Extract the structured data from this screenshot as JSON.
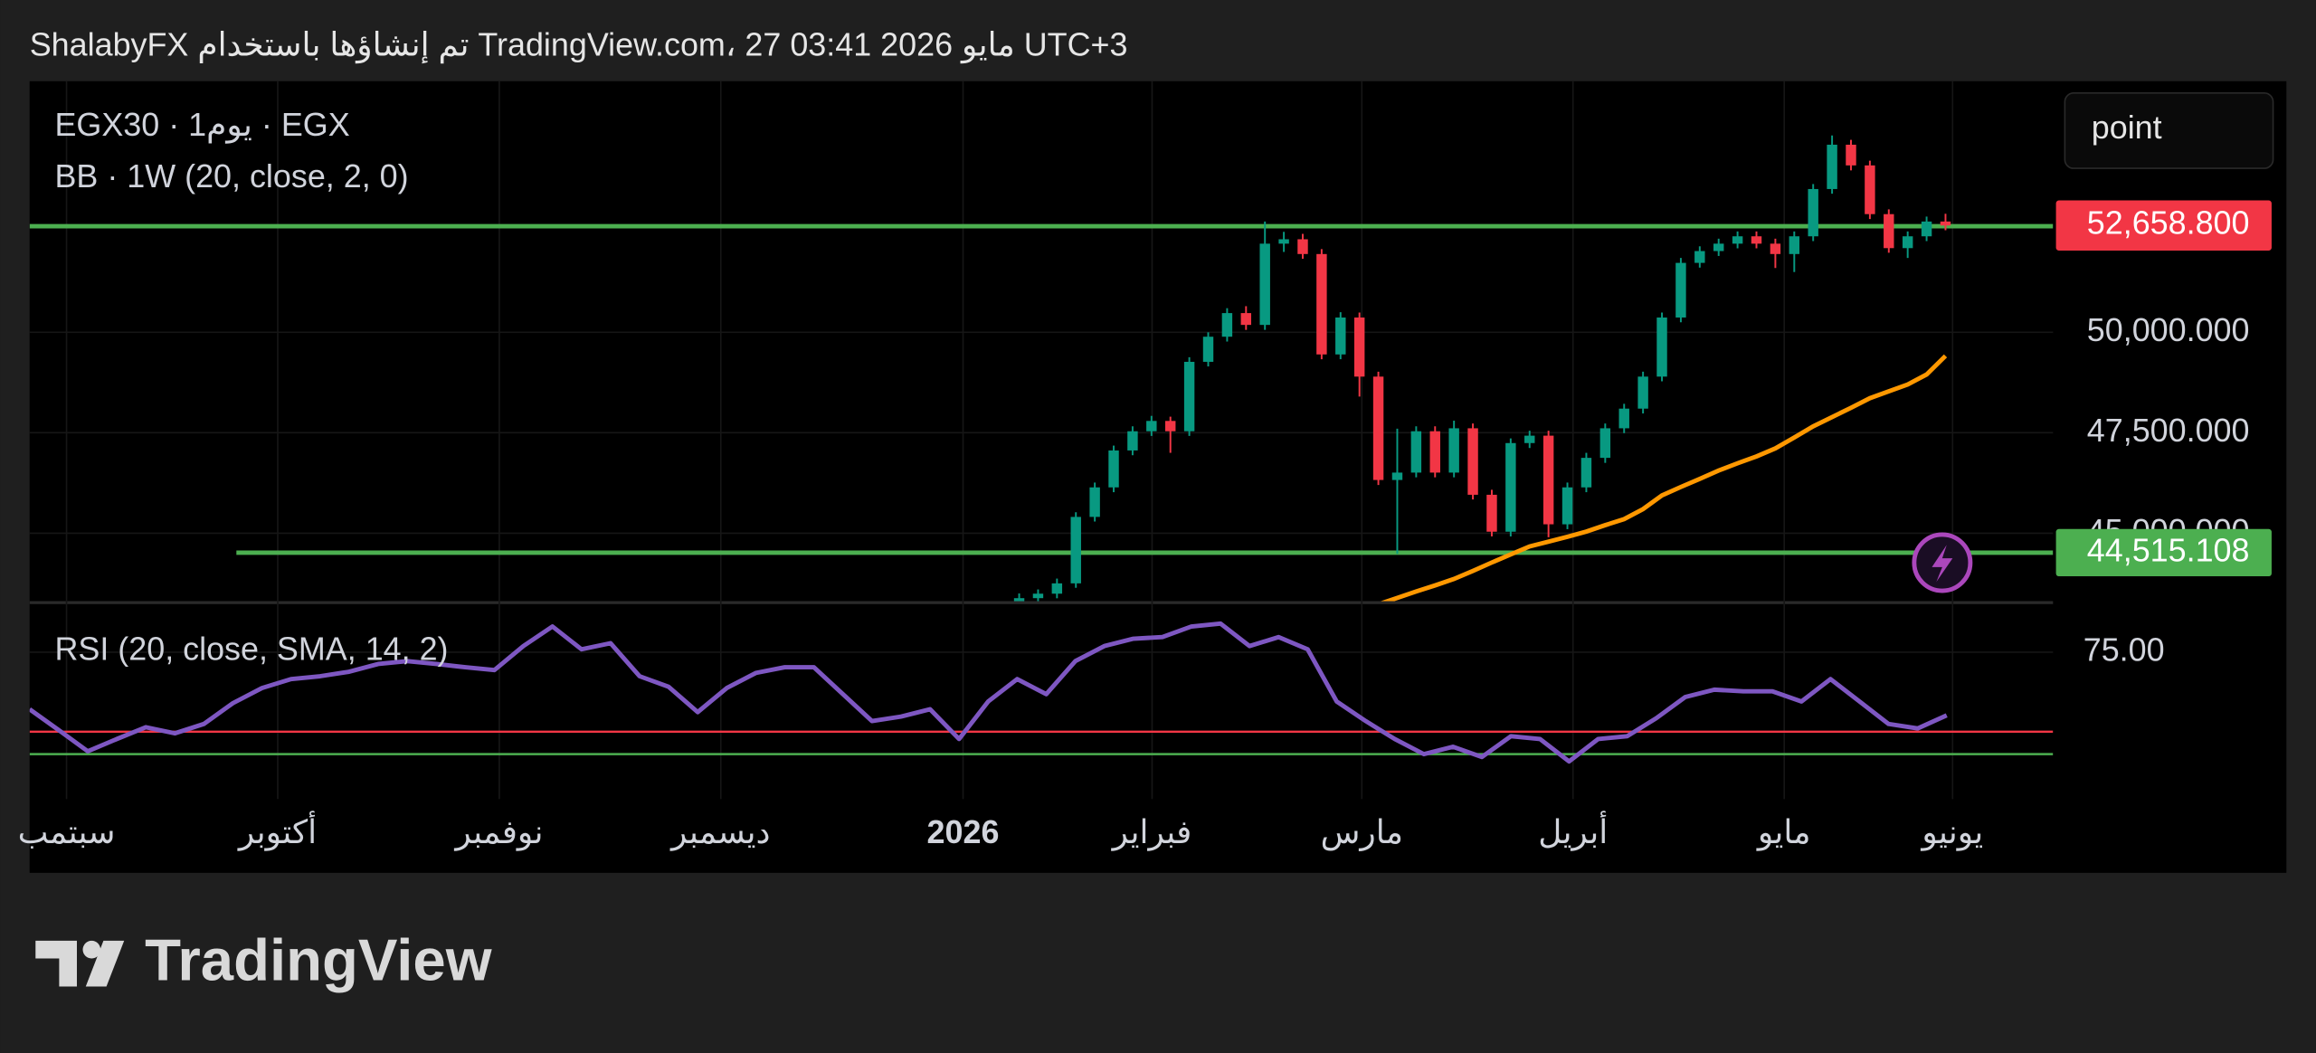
{
  "header": "ShalabyFX تم إنشاؤها باستخدام TradingView.com، 27 مايو 2026 03:41 UTC+3",
  "footer": {
    "logo": "TradingView"
  },
  "chart_data": {
    "type": "candlestick",
    "symbol_label": "EGX30 · 1يوم · EGX",
    "indicator_label": "BB · 1W (20, close, 2, 0)",
    "interval_button": "point",
    "colors": {
      "up": "#089981",
      "down": "#f23645"
    },
    "open": [
      43250,
      43383,
      43494,
      43751,
      45405,
      46140,
      47059,
      47537,
      47794,
      47537,
      49265,
      49890,
      50478,
      50184,
      52206,
      52316,
      51948,
      49449,
      50368,
      48897,
      46324,
      46508,
      47537,
      46508,
      47611,
      45956,
      45037,
      47243,
      47427,
      45221,
      46140,
      46875,
      47611,
      48100,
      48897,
      50368,
      51728,
      52022,
      52206,
      52389,
      52206,
      51948,
      52389,
      53566,
      54669,
      54154,
      52941,
      52095,
      52389,
      52757
    ],
    "high": [
      43500,
      43600,
      43870,
      45520,
      46260,
      47180,
      47660,
      47920,
      47900,
      49380,
      50000,
      50600,
      50650,
      52757,
      52500,
      52450,
      52070,
      50500,
      50490,
      49020,
      47600,
      47660,
      47660,
      47800,
      47730,
      46080,
      47360,
      47550,
      47550,
      46260,
      47000,
      47730,
      48220,
      49020,
      50490,
      51850,
      52140,
      52330,
      52510,
      52510,
      52330,
      52510,
      53690,
      54900,
      54790,
      54270,
      53060,
      52510,
      52880,
      52950
    ],
    "low": [
      43130,
      43260,
      43380,
      43640,
      45290,
      46020,
      46940,
      47420,
      47000,
      47420,
      49150,
      49770,
      50060,
      50060,
      52000,
      51830,
      49330,
      49330,
      48400,
      46200,
      44486,
      46390,
      46390,
      46390,
      45840,
      44920,
      44920,
      47120,
      44900,
      45100,
      46020,
      46750,
      47490,
      47980,
      48780,
      50250,
      51610,
      51900,
      52090,
      52090,
      51600,
      51500,
      52270,
      53450,
      54030,
      52820,
      51980,
      51850,
      52270,
      52540
    ],
    "close": [
      43383,
      43494,
      43751,
      45405,
      46140,
      47059,
      47537,
      47794,
      47537,
      49265,
      49890,
      50478,
      50184,
      52206,
      52316,
      51948,
      49449,
      50368,
      48897,
      46324,
      46508,
      47537,
      46508,
      47611,
      45956,
      45037,
      47243,
      47427,
      45221,
      46140,
      46875,
      47611,
      48100,
      48897,
      50368,
      51728,
      52022,
      52206,
      52389,
      52206,
      51948,
      52389,
      53566,
      54669,
      54154,
      52941,
      52095,
      52389,
      52757,
      52658.8
    ],
    "bb_basis": {
      "color": "#ff9800",
      "values": [
        null,
        null,
        null,
        null,
        null,
        null,
        null,
        null,
        null,
        null,
        null,
        null,
        null,
        null,
        null,
        null,
        null,
        null,
        null,
        43230,
        43390,
        43550,
        43700,
        43861,
        44060,
        44270,
        44470,
        44670,
        44790,
        44910,
        45040,
        45200,
        45350,
        45600,
        45940,
        46150,
        46350,
        46560,
        46740,
        46910,
        47110,
        47380,
        47660,
        47890,
        48120,
        48360,
        48530,
        48700,
        48950,
        49412
      ]
    },
    "ylim": [
      43310,
      56249
    ],
    "yticks": [
      {
        "value": 50000,
        "label": "50,000.000"
      },
      {
        "value": 47500,
        "label": "47,500.000"
      },
      {
        "value": 45000,
        "label": "45,000.000"
      }
    ],
    "last_price": {
      "value": 52658.8,
      "label": "52,658.800",
      "color": "#f23645"
    },
    "hlines": [
      {
        "value": 52640,
        "color": "#4caf50"
      },
      {
        "value": 44515.108,
        "label": "44,515.108",
        "color": "#4caf50"
      }
    ],
    "xtick_labels": [
      "سبتمب",
      "أكتوبر",
      "نوفمبر",
      "ديسمبر",
      "2026",
      "فبراير",
      "مارس",
      "أبريل",
      "مايو",
      "يونيو"
    ],
    "rsi": {
      "title": "RSI (20, close, SMA, 14, 2)",
      "color": "#7e57c2",
      "values": [
        61.0,
        55.9,
        50.7,
        53.7,
        56.6,
        55.1,
        57.4,
        62.5,
        66.2,
        68.4,
        69.1,
        70.2,
        72.1,
        72.8,
        72.1,
        71.3,
        70.6,
        76.5,
        81.3,
        75.7,
        77.2,
        69.1,
        66.5,
        60.3,
        66.2,
        69.9,
        71.3,
        71.3,
        64.7,
        58.1,
        59.2,
        61.0,
        53.7,
        62.9,
        68.4,
        64.7,
        72.8,
        76.5,
        78.3,
        78.7,
        81.3,
        82.0,
        76.5,
        78.7,
        75.7,
        62.9,
        58.1,
        53.7,
        50.0,
        51.8,
        49.3,
        54.4,
        53.7,
        48.2,
        53.7,
        54.4,
        58.8,
        64.0,
        65.8,
        65.4,
        65.4,
        62.9,
        68.4,
        62.9,
        57.4,
        56.3,
        59.5
      ],
      "ylim": [
        39.0,
        86.8
      ],
      "yticks": [
        {
          "value": 75,
          "label": "75.00"
        }
      ],
      "hlines": [
        {
          "value": 55.5,
          "color": "#f23645"
        },
        {
          "value": 50,
          "color": "#4caf50"
        }
      ]
    }
  }
}
